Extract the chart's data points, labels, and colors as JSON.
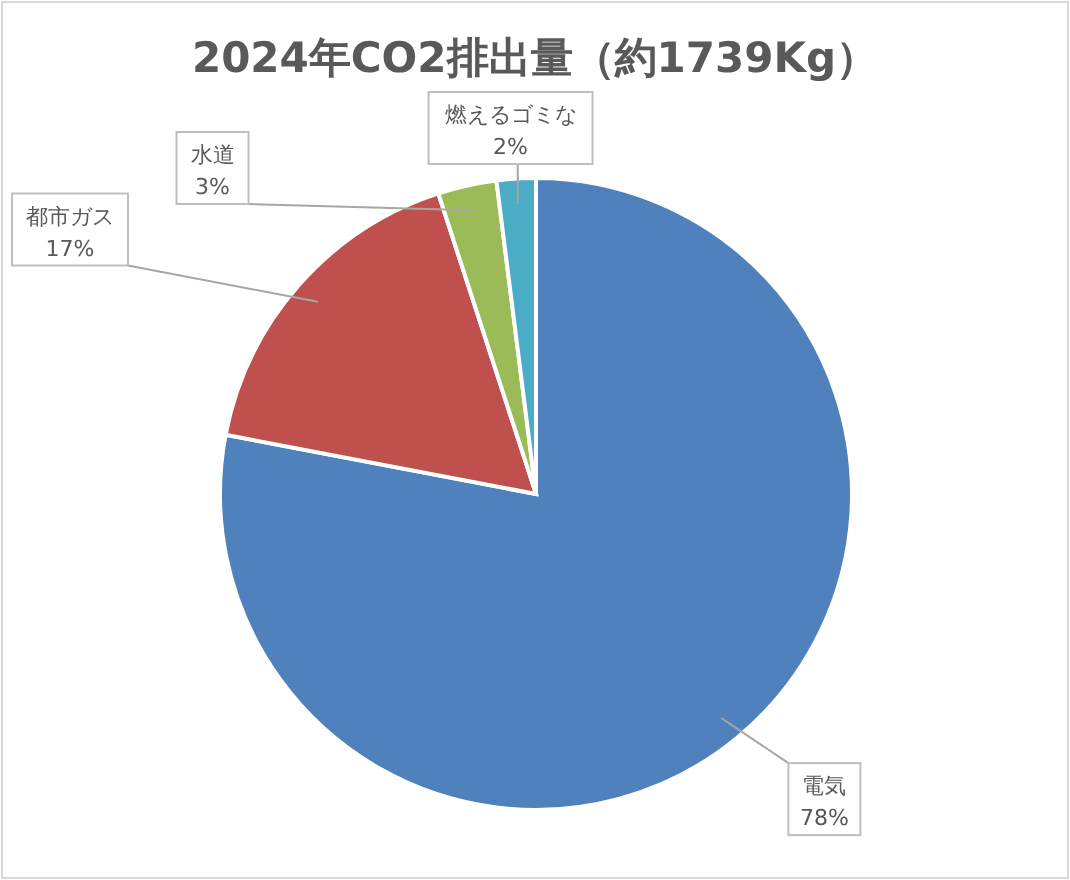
{
  "chart_data": {
    "type": "pie",
    "title": "2024年CO2排出量（約1739Kg）",
    "categories": [
      "電気",
      "都市ガス",
      "水道",
      "燃えるゴミな"
    ],
    "values": [
      78,
      17,
      3,
      2
    ],
    "value_labels": [
      "78%",
      "17%",
      "3%",
      "2%"
    ],
    "colors": [
      "#4f81bd",
      "#c0504d",
      "#9bbb59",
      "#4bacc6"
    ]
  }
}
